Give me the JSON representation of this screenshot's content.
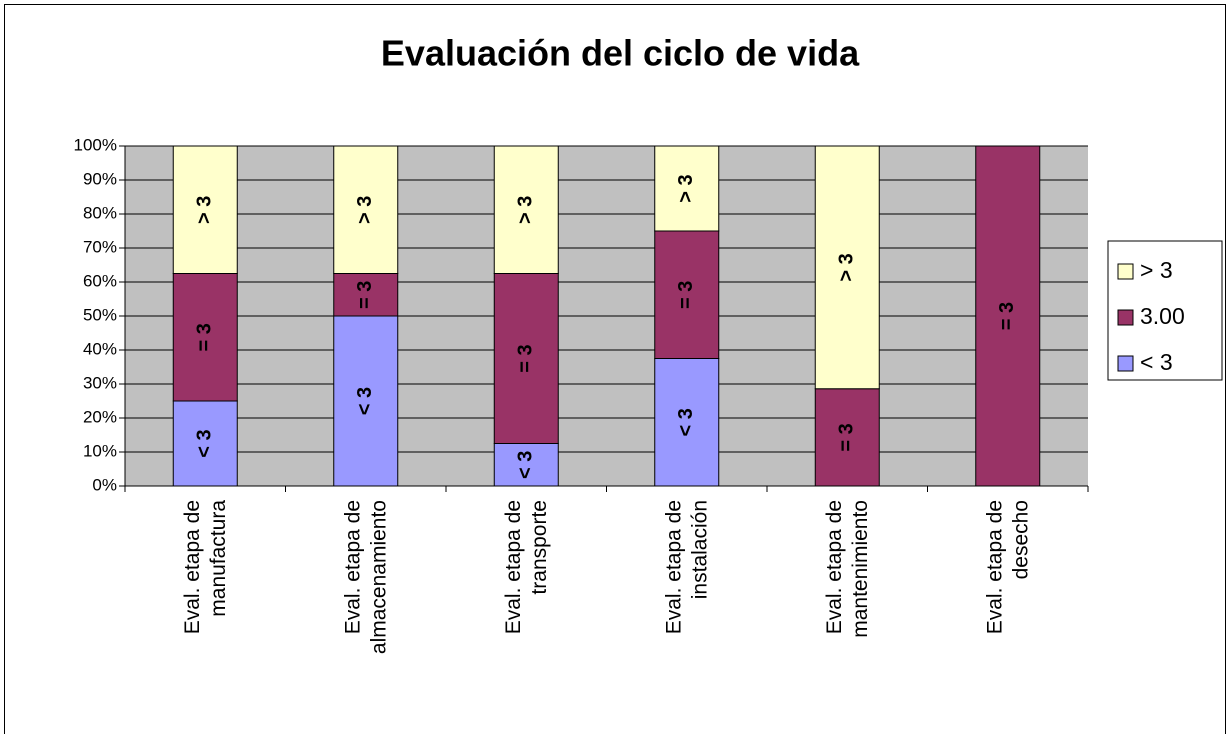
{
  "chart_data": {
    "type": "stacked_bar_100",
    "title": "Evaluación del ciclo de vida",
    "categories": [
      [
        "Eval. etapa de",
        "manufactura"
      ],
      [
        "Eval. etapa de",
        "almacenamiento"
      ],
      [
        "Eval. etapa de",
        "transporte"
      ],
      [
        "Eval. etapa de",
        "instalación"
      ],
      [
        "Eval. etapa de",
        "mantenimiento"
      ],
      [
        "Eval. etapa de",
        "desecho"
      ]
    ],
    "series": [
      {
        "name": "< 3",
        "label": "< 3",
        "color": "#9999ff",
        "values": [
          25,
          50,
          12.5,
          37.5,
          0,
          0
        ]
      },
      {
        "name": "3.00",
        "label": "= 3",
        "color": "#993366",
        "values": [
          37.5,
          12.5,
          50,
          37.5,
          28.6,
          100
        ]
      },
      {
        "name": "> 3",
        "label": "> 3",
        "color": "#ffffcc",
        "values": [
          37.5,
          37.5,
          37.5,
          25,
          71.4,
          0
        ]
      }
    ],
    "ylim": [
      0,
      100
    ],
    "yticks": [
      {
        "value": 0,
        "label": "0%"
      },
      {
        "value": 10,
        "label": "10%"
      },
      {
        "value": 20,
        "label": "20%"
      },
      {
        "value": 30,
        "label": "30%"
      },
      {
        "value": 40,
        "label": "40%"
      },
      {
        "value": 50,
        "label": "50%"
      },
      {
        "value": 60,
        "label": "60%"
      },
      {
        "value": 70,
        "label": "70%"
      },
      {
        "value": 80,
        "label": "80%"
      },
      {
        "value": 90,
        "label": "90%"
      },
      {
        "value": 100,
        "label": "100%"
      }
    ],
    "grid": true,
    "plot_background": "#c0c0c0",
    "legend": "right"
  }
}
